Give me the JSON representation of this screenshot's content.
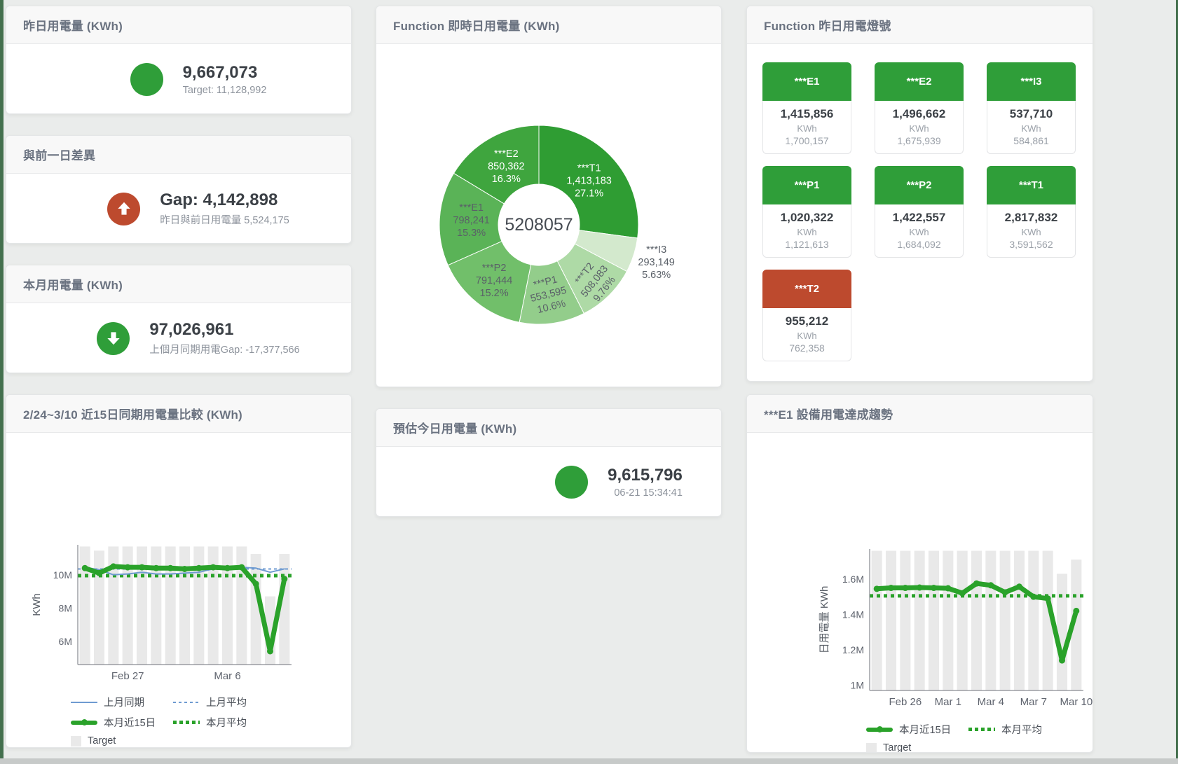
{
  "cards": {
    "yesterday": {
      "title": "昨日用電量 (KWh)",
      "value": "9,667,073",
      "sub": "Target: 11,128,992",
      "status_color": "#2f9e39"
    },
    "gap_prev_day": {
      "title": "與前一日差異",
      "value": "Gap: 4,142,898",
      "sub": "昨日與前日用電量 5,524,175",
      "status_color": "#bd4a2e",
      "direction": "up"
    },
    "month": {
      "title": "本月用電量 (KWh)",
      "value": "97,026,961",
      "sub": "上個月同期用電Gap: -17,377,566",
      "status_color": "#2f9e39",
      "direction": "down"
    },
    "estimate_today": {
      "title": "預估今日用電量 (KWh)",
      "value": "9,615,796",
      "sub": "06-21 15:34:41",
      "status_color": "#2f9e39"
    }
  },
  "donut_card": {
    "title": "Function 即時日用電量 (KWh)"
  },
  "compare_chart_card": {
    "title": "2/24~3/10 近15日同期用電量比較 (KWh)"
  },
  "e1_chart_card": {
    "title": "***E1 設備用電達成趨勢"
  },
  "lights_card": {
    "title": "Function 昨日用電燈號",
    "tiles": [
      {
        "label": "***E1",
        "value": "1,415,856",
        "unit": "KWh",
        "target": "1,700,157",
        "status": "green"
      },
      {
        "label": "***E2",
        "value": "1,496,662",
        "unit": "KWh",
        "target": "1,675,939",
        "status": "green"
      },
      {
        "label": "***I3",
        "value": "537,710",
        "unit": "KWh",
        "target": "584,861",
        "status": "green"
      },
      {
        "label": "***P1",
        "value": "1,020,322",
        "unit": "KWh",
        "target": "1,121,613",
        "status": "green"
      },
      {
        "label": "***P2",
        "value": "1,422,557",
        "unit": "KWh",
        "target": "1,684,092",
        "status": "green"
      },
      {
        "label": "***T1",
        "value": "2,817,832",
        "unit": "KWh",
        "target": "3,591,562",
        "status": "green"
      },
      {
        "label": "***T2",
        "value": "955,212",
        "unit": "KWh",
        "target": "762,358",
        "status": "red"
      }
    ]
  },
  "chart_data": [
    {
      "type": "pie",
      "title": "Function 即時日用電量 (KWh)",
      "center_label": "5208057",
      "legend_position": "none",
      "slices": [
        {
          "name": "***T1",
          "value": 1413183,
          "pct": "27.1%",
          "color": "#2f9d33",
          "label_color": "#ffffff",
          "label_r": 0.67,
          "rot": 0
        },
        {
          "name": "***I3",
          "value": 293149,
          "pct": "5.63%",
          "color": "#d3e9cd",
          "label_color": "#5a6068",
          "label_r": 1.24,
          "rot": 0
        },
        {
          "name": "***T2",
          "value": 508083,
          "pct": "9.76%",
          "color": "#aedaa6",
          "label_color": "#5a6068",
          "label_r": 0.8,
          "rot": -52
        },
        {
          "name": "***P1",
          "value": 553595,
          "pct": "10.6%",
          "color": "#93cd8b",
          "label_color": "#5a6068",
          "label_r": 0.71,
          "rot": -14
        },
        {
          "name": "***P2",
          "value": 791444,
          "pct": "15.2%",
          "color": "#71bf6a",
          "label_color": "#5a6068",
          "label_r": 0.72,
          "rot": 0
        },
        {
          "name": "***E1",
          "value": 798241,
          "pct": "15.3%",
          "color": "#5ab357",
          "label_color": "#5a6068",
          "label_r": 0.68,
          "rot": 0
        },
        {
          "name": "***E2",
          "value": 850362,
          "pct": "16.3%",
          "color": "#3fa53e",
          "label_color": "#ffffff",
          "label_r": 0.67,
          "rot": 0
        }
      ]
    },
    {
      "type": "line+bar",
      "title": "2/24~3/10 近15日同期用電量比較 (KWh)",
      "ylabel": "KWh",
      "ylim": [
        4.6,
        11.8
      ],
      "grid": false,
      "y_ticks": [
        {
          "v": 6,
          "label": "6M"
        },
        {
          "v": 8,
          "label": "8M"
        },
        {
          "v": 10,
          "label": "10M"
        }
      ],
      "x_ticks": [
        {
          "i": 3,
          "label": "Feb 27"
        },
        {
          "i": 10,
          "label": "Mar 6"
        }
      ],
      "target_bars": {
        "name": "Target",
        "color": "#e9e9e9",
        "values": [
          11.7,
          11.45,
          11.7,
          11.7,
          11.7,
          11.7,
          11.7,
          11.7,
          11.7,
          11.7,
          11.7,
          11.7,
          11.25,
          8.7,
          11.25
        ]
      },
      "series": [
        {
          "name": "上月同期",
          "color": "#6f9bd1",
          "width": 2,
          "style": "solid",
          "values": [
            10.45,
            10.3,
            10.0,
            10.05,
            10.15,
            10.05,
            10.05,
            10.1,
            10.15,
            10.35,
            10.5,
            10.45,
            10.4,
            10.15,
            10.35
          ]
        },
        {
          "name": "本月近15日",
          "color": "#2aa22a",
          "width": 7,
          "style": "solid",
          "values": [
            10.4,
            10.1,
            10.5,
            10.45,
            10.45,
            10.4,
            10.4,
            10.35,
            10.4,
            10.45,
            10.4,
            10.45,
            9.45,
            5.4,
            9.75
          ]
        }
      ],
      "avg_lines": [
        {
          "name": "上月平均",
          "color": "#6f9bd1",
          "value": 10.35,
          "style": "dash-thin"
        },
        {
          "name": "本月平均",
          "color": "#2aa22a",
          "value": 9.95,
          "style": "dot-thick"
        }
      ]
    },
    {
      "type": "line+bar",
      "title": "***E1 設備用電達成趨勢",
      "ylabel": "日用電量 KWh",
      "ylim": [
        0.97,
        1.77
      ],
      "grid": false,
      "y_ticks": [
        {
          "v": 1,
          "label": "1M"
        },
        {
          "v": 1.2,
          "label": "1.2M"
        },
        {
          "v": 1.4,
          "label": "1.4M"
        },
        {
          "v": 1.6,
          "label": "1.6M"
        }
      ],
      "x_ticks": [
        {
          "i": 2,
          "label": "Feb 26"
        },
        {
          "i": 5,
          "label": "Mar 1"
        },
        {
          "i": 8,
          "label": "Mar 4"
        },
        {
          "i": 11,
          "label": "Mar 7"
        },
        {
          "i": 14,
          "label": "Mar 10"
        }
      ],
      "target_bars": {
        "name": "Target",
        "color": "#e9e9e9",
        "values": [
          1.76,
          1.76,
          1.76,
          1.76,
          1.76,
          1.76,
          1.76,
          1.76,
          1.76,
          1.76,
          1.76,
          1.76,
          1.76,
          1.63,
          1.71
        ]
      },
      "series": [
        {
          "name": "本月近15日",
          "color": "#2aa22a",
          "width": 7,
          "style": "solid",
          "values": [
            1.545,
            1.55,
            1.55,
            1.552,
            1.55,
            1.548,
            1.52,
            1.575,
            1.565,
            1.525,
            1.557,
            1.5,
            1.49,
            1.14,
            1.42
          ]
        }
      ],
      "avg_lines": [
        {
          "name": "本月平均",
          "color": "#2aa22a",
          "value": 1.505,
          "style": "dot-thick"
        }
      ]
    }
  ]
}
